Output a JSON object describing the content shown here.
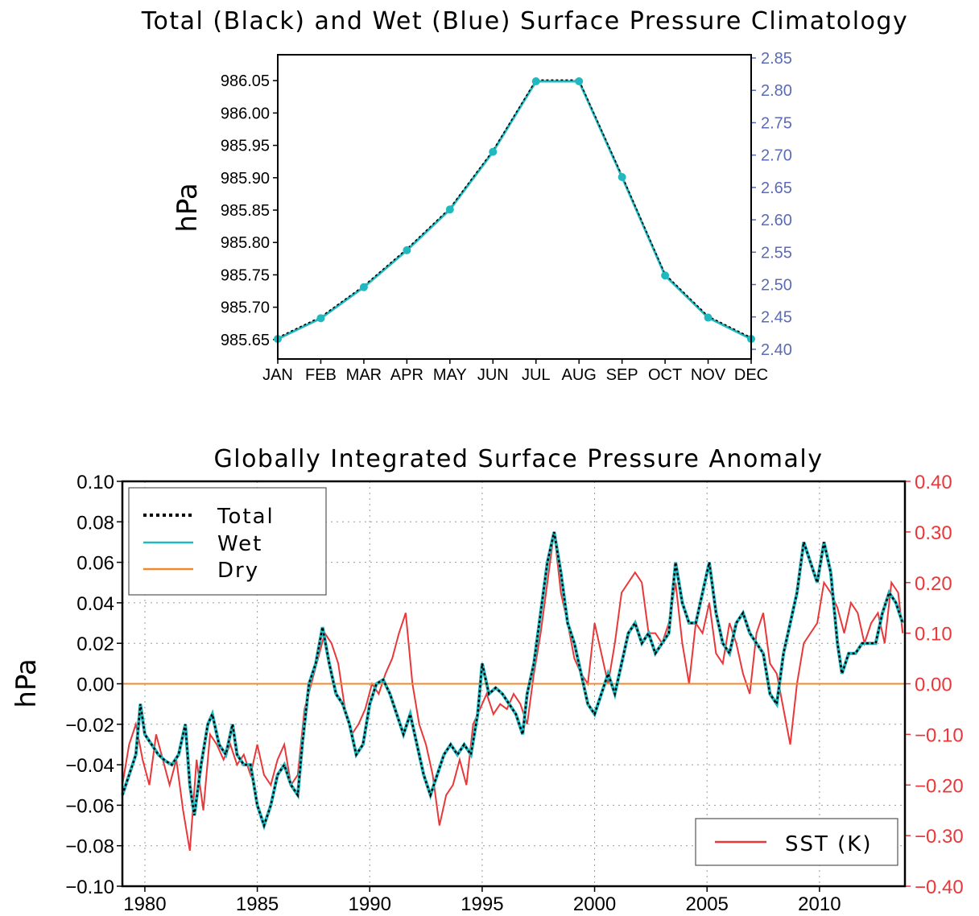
{
  "chart_data": [
    {
      "type": "line",
      "title": "Total (Black) and Wet (Blue) Surface Pressure Climatology",
      "ylabel": "hPa",
      "categories": [
        "JAN",
        "FEB",
        "MAR",
        "APR",
        "MAY",
        "JUN",
        "JUL",
        "AUG",
        "SEP",
        "OCT",
        "NOV",
        "DEC"
      ],
      "ylim": [
        985.62,
        986.09
      ],
      "yticks": [
        "985.65",
        "985.70",
        "985.75",
        "985.80",
        "985.85",
        "985.90",
        "985.95",
        "986.00",
        "986.05"
      ],
      "y2lim": [
        2.385,
        2.855
      ],
      "y2ticks": [
        "2.40",
        "2.45",
        "2.50",
        "2.55",
        "2.60",
        "2.65",
        "2.70",
        "2.75",
        "2.80",
        "2.85"
      ],
      "series": [
        {
          "name": "Total",
          "values": [
            985.653,
            985.685,
            985.733,
            985.79,
            985.853,
            985.942,
            986.051,
            986.051,
            985.903,
            985.751,
            985.686,
            985.653
          ]
        },
        {
          "name": "Wet",
          "axis": "right",
          "values": [
            2.416,
            2.448,
            2.496,
            2.553,
            2.616,
            2.705,
            2.814,
            2.814,
            2.666,
            2.514,
            2.449,
            2.416
          ]
        }
      ],
      "colors": {
        "total": "#000000",
        "wet": "#22b8c0"
      },
      "grid": false
    },
    {
      "type": "line",
      "title": "Globally Integrated Surface Pressure Anomaly",
      "ylabel": "hPa",
      "xlim": [
        1979.0,
        2013.8
      ],
      "xticks": [
        "1980",
        "1985",
        "1990",
        "1995",
        "2000",
        "2005",
        "2010"
      ],
      "ylim": [
        -0.1,
        0.1
      ],
      "yticks": [
        "0.10",
        "0.08",
        "0.06",
        "0.04",
        "0.02",
        "0.00",
        "−0.02",
        "−0.04",
        "−0.06",
        "−0.08",
        "−0.10"
      ],
      "y2lim": [
        -0.4,
        0.4
      ],
      "y2ticks": [
        "0.40",
        "0.30",
        "0.20",
        "0.10",
        "0.00",
        "−0.10",
        "−0.20",
        "−0.30",
        "−0.40"
      ],
      "grid": true,
      "legend": {
        "placement": "top-left",
        "entries": [
          "Total",
          "Wet",
          "Dry"
        ]
      },
      "legend2": {
        "placement": "bottom-right",
        "entries": [
          "SST (K)"
        ]
      },
      "colors": {
        "total": "#000000",
        "wet": "#22b8c0",
        "dry": "#f08a2c",
        "sst": "#e8383a"
      },
      "series": [
        {
          "name": "Wet",
          "x": [
            1979.0,
            1979.3,
            1979.6,
            1979.8,
            1980.0,
            1980.3,
            1980.6,
            1980.9,
            1981.2,
            1981.5,
            1981.8,
            1982.0,
            1982.2,
            1982.5,
            1982.8,
            1983.0,
            1983.3,
            1983.6,
            1983.9,
            1984.1,
            1984.4,
            1984.7,
            1985.0,
            1985.3,
            1985.6,
            1985.9,
            1986.2,
            1986.5,
            1986.8,
            1987.0,
            1987.3,
            1987.6,
            1987.9,
            1988.2,
            1988.5,
            1988.8,
            1989.1,
            1989.4,
            1989.7,
            1990.0,
            1990.3,
            1990.6,
            1990.9,
            1991.2,
            1991.5,
            1991.8,
            1992.1,
            1992.4,
            1992.7,
            1993.0,
            1993.3,
            1993.6,
            1993.9,
            1994.2,
            1994.5,
            1994.8,
            1995.0,
            1995.3,
            1995.6,
            1995.9,
            1996.2,
            1996.5,
            1996.8,
            1997.0,
            1997.3,
            1997.6,
            1997.9,
            1998.2,
            1998.5,
            1998.8,
            1999.1,
            1999.4,
            1999.7,
            2000.0,
            2000.3,
            2000.6,
            2000.9,
            2001.2,
            2001.5,
            2001.8,
            2002.1,
            2002.4,
            2002.7,
            2003.0,
            2003.3,
            2003.6,
            2003.9,
            2004.2,
            2004.5,
            2004.8,
            2005.1,
            2005.4,
            2005.7,
            2006.0,
            2006.3,
            2006.6,
            2006.9,
            2007.2,
            2007.5,
            2007.8,
            2008.1,
            2008.4,
            2008.7,
            2009.0,
            2009.3,
            2009.6,
            2009.9,
            2010.2,
            2010.5,
            2010.8,
            2011.0,
            2011.3,
            2011.6,
            2011.9,
            2012.2,
            2012.5,
            2012.8,
            2013.1,
            2013.4,
            2013.7
          ],
          "values": [
            -0.055,
            -0.045,
            -0.035,
            -0.01,
            -0.025,
            -0.03,
            -0.035,
            -0.038,
            -0.04,
            -0.035,
            -0.02,
            -0.05,
            -0.065,
            -0.04,
            -0.02,
            -0.015,
            -0.03,
            -0.035,
            -0.02,
            -0.035,
            -0.04,
            -0.04,
            -0.06,
            -0.07,
            -0.06,
            -0.045,
            -0.04,
            -0.05,
            -0.055,
            -0.03,
            0.0,
            0.01,
            0.028,
            0.01,
            -0.005,
            -0.01,
            -0.02,
            -0.035,
            -0.03,
            -0.01,
            0.0,
            0.002,
            -0.005,
            -0.015,
            -0.025,
            -0.015,
            -0.03,
            -0.045,
            -0.055,
            -0.045,
            -0.035,
            -0.03,
            -0.035,
            -0.03,
            -0.035,
            -0.015,
            0.01,
            -0.005,
            -0.002,
            -0.005,
            -0.01,
            -0.015,
            -0.025,
            -0.005,
            0.01,
            0.035,
            0.06,
            0.075,
            0.055,
            0.03,
            0.02,
            0.005,
            -0.01,
            -0.015,
            -0.005,
            0.005,
            -0.005,
            0.01,
            0.025,
            0.03,
            0.02,
            0.025,
            0.015,
            0.02,
            0.025,
            0.06,
            0.04,
            0.03,
            0.03,
            0.045,
            0.06,
            0.035,
            0.02,
            0.015,
            0.03,
            0.035,
            0.025,
            0.02,
            0.015,
            -0.005,
            -0.01,
            0.015,
            0.03,
            0.045,
            0.07,
            0.06,
            0.05,
            0.07,
            0.055,
            0.02,
            0.005,
            0.015,
            0.015,
            0.02,
            0.02,
            0.02,
            0.035,
            0.045,
            0.04,
            0.03
          ]
        },
        {
          "name": "Total",
          "x": [
            1979.0,
            1979.3,
            1979.6,
            1979.8,
            1980.0,
            1980.3,
            1980.6,
            1980.9,
            1981.2,
            1981.5,
            1981.8,
            1982.0,
            1982.2,
            1982.5,
            1982.8,
            1983.0,
            1983.3,
            1983.6,
            1983.9,
            1984.1,
            1984.4,
            1984.7,
            1985.0,
            1985.3,
            1985.6,
            1985.9,
            1986.2,
            1986.5,
            1986.8,
            1987.0,
            1987.3,
            1987.6,
            1987.9,
            1988.2,
            1988.5,
            1988.8,
            1989.1,
            1989.4,
            1989.7,
            1990.0,
            1990.3,
            1990.6,
            1990.9,
            1991.2,
            1991.5,
            1991.8,
            1992.1,
            1992.4,
            1992.7,
            1993.0,
            1993.3,
            1993.6,
            1993.9,
            1994.2,
            1994.5,
            1994.8,
            1995.0,
            1995.3,
            1995.6,
            1995.9,
            1996.2,
            1996.5,
            1996.8,
            1997.0,
            1997.3,
            1997.6,
            1997.9,
            1998.2,
            1998.5,
            1998.8,
            1999.1,
            1999.4,
            1999.7,
            2000.0,
            2000.3,
            2000.6,
            2000.9,
            2001.2,
            2001.5,
            2001.8,
            2002.1,
            2002.4,
            2002.7,
            2003.0,
            2003.3,
            2003.6,
            2003.9,
            2004.2,
            2004.5,
            2004.8,
            2005.1,
            2005.4,
            2005.7,
            2006.0,
            2006.3,
            2006.6,
            2006.9,
            2007.2,
            2007.5,
            2007.8,
            2008.1,
            2008.4,
            2008.7,
            2009.0,
            2009.3,
            2009.6,
            2009.9,
            2010.2,
            2010.5,
            2010.8,
            2011.0,
            2011.3,
            2011.6,
            2011.9,
            2012.2,
            2012.5,
            2012.8,
            2013.1,
            2013.4,
            2013.7
          ],
          "values": [
            -0.055,
            -0.045,
            -0.035,
            -0.01,
            -0.025,
            -0.03,
            -0.035,
            -0.038,
            -0.04,
            -0.035,
            -0.02,
            -0.05,
            -0.065,
            -0.04,
            -0.02,
            -0.015,
            -0.03,
            -0.035,
            -0.02,
            -0.035,
            -0.04,
            -0.04,
            -0.06,
            -0.07,
            -0.06,
            -0.045,
            -0.04,
            -0.05,
            -0.055,
            -0.03,
            0.0,
            0.01,
            0.028,
            0.01,
            -0.005,
            -0.01,
            -0.02,
            -0.035,
            -0.03,
            -0.01,
            0.0,
            0.002,
            -0.005,
            -0.015,
            -0.025,
            -0.015,
            -0.03,
            -0.045,
            -0.055,
            -0.045,
            -0.035,
            -0.03,
            -0.035,
            -0.03,
            -0.035,
            -0.015,
            0.01,
            -0.005,
            -0.002,
            -0.005,
            -0.01,
            -0.015,
            -0.025,
            -0.005,
            0.01,
            0.035,
            0.06,
            0.075,
            0.055,
            0.03,
            0.02,
            0.005,
            -0.01,
            -0.015,
            -0.005,
            0.005,
            -0.005,
            0.01,
            0.025,
            0.03,
            0.02,
            0.025,
            0.015,
            0.02,
            0.025,
            0.06,
            0.04,
            0.03,
            0.03,
            0.045,
            0.06,
            0.035,
            0.02,
            0.015,
            0.03,
            0.035,
            0.025,
            0.02,
            0.015,
            -0.005,
            -0.01,
            0.015,
            0.03,
            0.045,
            0.07,
            0.06,
            0.05,
            0.07,
            0.055,
            0.02,
            0.005,
            0.015,
            0.015,
            0.02,
            0.02,
            0.02,
            0.035,
            0.045,
            0.04,
            0.03
          ]
        },
        {
          "name": "Dry",
          "x": [
            1979.0,
            2013.8
          ],
          "values": [
            0.0,
            0.0
          ]
        },
        {
          "name": "SST (K)",
          "axis": "right",
          "x": [
            1979.0,
            1979.3,
            1979.6,
            1979.9,
            1980.2,
            1980.5,
            1980.8,
            1981.1,
            1981.4,
            1981.7,
            1982.0,
            1982.3,
            1982.6,
            1982.9,
            1983.2,
            1983.5,
            1983.8,
            1984.1,
            1984.4,
            1984.7,
            1985.0,
            1985.3,
            1985.6,
            1985.9,
            1986.2,
            1986.5,
            1986.8,
            1987.1,
            1987.4,
            1987.7,
            1988.0,
            1988.3,
            1988.6,
            1988.9,
            1989.2,
            1989.5,
            1989.8,
            1990.1,
            1990.4,
            1990.7,
            1991.0,
            1991.3,
            1991.6,
            1991.9,
            1992.2,
            1992.5,
            1992.8,
            1993.1,
            1993.4,
            1993.7,
            1994.0,
            1994.3,
            1994.6,
            1994.9,
            1995.2,
            1995.5,
            1995.8,
            1996.1,
            1996.4,
            1996.7,
            1997.0,
            1997.3,
            1997.6,
            1997.9,
            1998.2,
            1998.5,
            1998.8,
            1999.1,
            1999.4,
            1999.7,
            2000.0,
            2000.3,
            2000.6,
            2000.9,
            2001.2,
            2001.5,
            2001.8,
            2002.1,
            2002.4,
            2002.7,
            2003.0,
            2003.3,
            2003.6,
            2003.9,
            2004.2,
            2004.5,
            2004.8,
            2005.1,
            2005.4,
            2005.7,
            2006.0,
            2006.3,
            2006.6,
            2006.9,
            2007.2,
            2007.5,
            2007.8,
            2008.1,
            2008.4,
            2008.7,
            2009.0,
            2009.3,
            2009.6,
            2009.9,
            2010.2,
            2010.5,
            2010.8,
            2011.1,
            2011.4,
            2011.7,
            2012.0,
            2012.3,
            2012.6,
            2012.9,
            2013.2,
            2013.5,
            2013.7
          ],
          "values": [
            -0.2,
            -0.12,
            -0.08,
            -0.15,
            -0.2,
            -0.1,
            -0.15,
            -0.2,
            -0.15,
            -0.25,
            -0.33,
            -0.15,
            -0.25,
            -0.1,
            -0.12,
            -0.15,
            -0.12,
            -0.16,
            -0.14,
            -0.18,
            -0.12,
            -0.18,
            -0.2,
            -0.15,
            -0.12,
            -0.2,
            -0.18,
            -0.05,
            0.0,
            0.05,
            0.1,
            0.08,
            0.04,
            -0.05,
            -0.1,
            -0.08,
            -0.05,
            0.0,
            -0.02,
            0.02,
            0.05,
            0.1,
            0.14,
            0.0,
            -0.08,
            -0.12,
            -0.18,
            -0.28,
            -0.22,
            -0.2,
            -0.15,
            -0.2,
            -0.08,
            -0.05,
            -0.02,
            -0.06,
            -0.04,
            -0.05,
            -0.02,
            -0.04,
            -0.08,
            0.02,
            0.1,
            0.2,
            0.3,
            0.18,
            0.12,
            0.05,
            0.02,
            0.0,
            0.12,
            0.06,
            0.0,
            0.08,
            0.18,
            0.2,
            0.22,
            0.2,
            0.1,
            0.1,
            0.08,
            0.12,
            0.2,
            0.08,
            0.0,
            0.12,
            0.1,
            0.16,
            0.06,
            0.04,
            0.12,
            0.08,
            0.02,
            -0.02,
            0.1,
            0.14,
            0.04,
            0.02,
            -0.05,
            -0.12,
            0.0,
            0.08,
            0.1,
            0.12,
            0.2,
            0.18,
            0.15,
            0.1,
            0.16,
            0.14,
            0.08,
            0.12,
            0.14,
            0.08,
            0.2,
            0.18,
            0.1
          ]
        }
      ]
    }
  ]
}
